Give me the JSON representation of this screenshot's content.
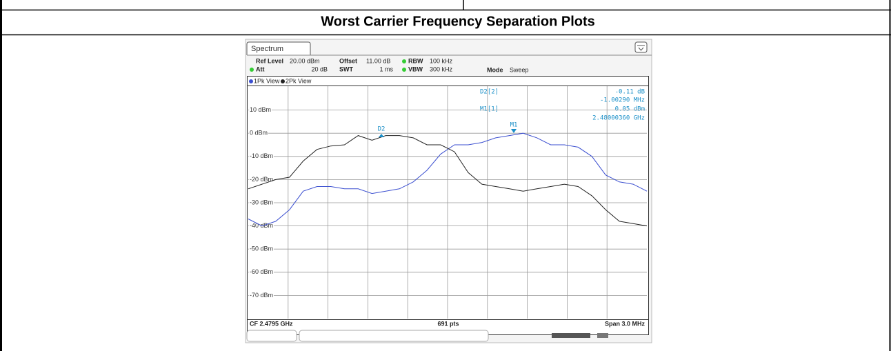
{
  "table": {
    "title": "Worst Carrier Frequency Separation Plots"
  },
  "screenshot": {
    "tab": "Spectrum",
    "settings": [
      {
        "label": "Ref Level",
        "value": "20.00 dBm"
      },
      {
        "label": "Offset",
        "value": "11.00 dB"
      },
      {
        "label": "RBW",
        "value": "100 kHz"
      },
      {
        "label": "Att",
        "value": "20 dB"
      },
      {
        "label": "SWT",
        "value": "1 ms"
      },
      {
        "label": "VBW",
        "value": "300 kHz"
      },
      {
        "label": "Mode",
        "value": "Sweep"
      }
    ],
    "marker_table": [
      {
        "name": "D2[2]",
        "lines": [
          "-0.11 dB",
          "-1.00290 MHz"
        ]
      },
      {
        "name": "M1[1]",
        "lines": [
          "0.05 dBm",
          "2.48000360 GHz"
        ]
      }
    ],
    "markers": [
      "D2",
      "M1"
    ],
    "footer": {
      "left": "CF 2.4795 GHz",
      "center": "691 pts",
      "right": "Span 3.0 MHz"
    }
  },
  "chart_data": {
    "type": "line",
    "ylim": [
      -80,
      20
    ],
    "yticks": [
      {
        "value": 10,
        "label": "10 dBm"
      },
      {
        "value": 0,
        "label": "0 dBm"
      },
      {
        "value": -10,
        "label": "-10 dBm"
      },
      {
        "value": -20,
        "label": "-20 dBm"
      },
      {
        "value": -30,
        "label": "-30 dBm"
      },
      {
        "value": -40,
        "label": "-40 dBm"
      },
      {
        "value": -50,
        "label": "-50 dBm"
      },
      {
        "value": -60,
        "label": "-60 dBm"
      },
      {
        "value": -70,
        "label": "-70 dBm"
      }
    ],
    "grid": true,
    "series": [
      {
        "name": "1Pk View",
        "color": "#3b4fd0",
        "values": [
          -37,
          -40,
          -38,
          -33,
          -25,
          -23,
          -23,
          -24,
          -24,
          -26,
          -25,
          -24,
          -21,
          -16,
          -9,
          -5,
          -5,
          -4,
          -2,
          -1,
          0,
          -2,
          -5,
          -5,
          -6,
          -10,
          -18,
          -21,
          -22,
          -25
        ]
      },
      {
        "name": "2Pk View",
        "color": "#222222",
        "values": [
          -24,
          -22,
          -20,
          -19,
          -12,
          -7,
          -5.5,
          -5,
          -1,
          -3,
          -1,
          -1,
          -2,
          -5,
          -5,
          -8,
          -17,
          -22,
          -23,
          -24,
          -25,
          -24,
          -23,
          -22,
          -23,
          -27,
          -33,
          -38,
          -39,
          -40
        ]
      }
    ]
  }
}
